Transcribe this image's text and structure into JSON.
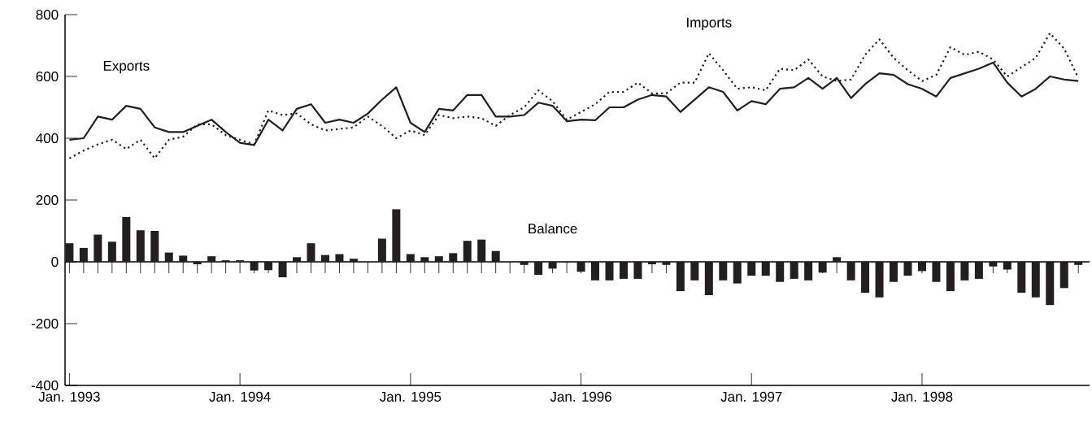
{
  "chart_data": {
    "type": "line",
    "x": [
      "1993-01",
      "1993-02",
      "1993-03",
      "1993-04",
      "1993-05",
      "1993-06",
      "1993-07",
      "1993-08",
      "1993-09",
      "1993-10",
      "1993-11",
      "1993-12",
      "1994-01",
      "1994-02",
      "1994-03",
      "1994-04",
      "1994-05",
      "1994-06",
      "1994-07",
      "1994-08",
      "1994-09",
      "1994-10",
      "1994-11",
      "1994-12",
      "1995-01",
      "1995-02",
      "1995-03",
      "1995-04",
      "1995-05",
      "1995-06",
      "1995-07",
      "1995-08",
      "1995-09",
      "1995-10",
      "1995-11",
      "1995-12",
      "1996-01",
      "1996-02",
      "1996-03",
      "1996-04",
      "1996-05",
      "1996-06",
      "1996-07",
      "1996-08",
      "1996-09",
      "1996-10",
      "1996-11",
      "1996-12",
      "1997-01",
      "1997-02",
      "1997-03",
      "1997-04",
      "1997-05",
      "1997-06",
      "1997-07",
      "1997-08",
      "1997-09",
      "1997-10",
      "1997-11",
      "1997-12",
      "1998-01",
      "1998-02",
      "1998-03",
      "1998-04",
      "1998-05",
      "1998-06",
      "1998-07",
      "1998-08",
      "1998-09",
      "1998-10",
      "1998-11",
      "1998-12"
    ],
    "series": [
      {
        "name": "Exports",
        "line_style": "solid",
        "color": "#231f20",
        "values": [
          395,
          400,
          470,
          460,
          505,
          495,
          435,
          420,
          420,
          440,
          460,
          420,
          385,
          378,
          460,
          425,
          495,
          510,
          450,
          460,
          450,
          480,
          525,
          565,
          450,
          420,
          495,
          490,
          540,
          540,
          470,
          470,
          475,
          515,
          505,
          455,
          460,
          458,
          500,
          500,
          525,
          540,
          535,
          485,
          525,
          565,
          550,
          490,
          520,
          510,
          560,
          565,
          595,
          560,
          595,
          530,
          575,
          610,
          605,
          575,
          560,
          535,
          595,
          610,
          625,
          645,
          580,
          535,
          560,
          600,
          590,
          585
        ]
      },
      {
        "name": "Imports",
        "line_style": "dotted",
        "color": "#231f20",
        "values": [
          335,
          360,
          380,
          395,
          365,
          395,
          335,
          395,
          405,
          445,
          445,
          410,
          395,
          380,
          490,
          475,
          480,
          445,
          425,
          430,
          435,
          470,
          440,
          400,
          425,
          410,
          475,
          465,
          470,
          465,
          440,
          475,
          500,
          555,
          520,
          460,
          485,
          510,
          550,
          550,
          580,
          545,
          545,
          580,
          580,
          675,
          620,
          560,
          565,
          555,
          625,
          620,
          655,
          600,
          585,
          590,
          670,
          720,
          660,
          620,
          585,
          605,
          695,
          670,
          680,
          655,
          600,
          630,
          660,
          740,
          690,
          595
        ]
      },
      {
        "name": "Balance",
        "type": "bar",
        "color": "#231f20",
        "values": [
          60,
          45,
          88,
          65,
          145,
          102,
          100,
          30,
          20,
          -8,
          18,
          5,
          5,
          -28,
          -27,
          -50,
          15,
          60,
          22,
          25,
          10,
          0,
          75,
          170,
          25,
          15,
          18,
          28,
          68,
          72,
          35,
          0,
          -10,
          -42,
          -22,
          -2,
          -32,
          -60,
          -60,
          -55,
          -55,
          -8,
          -10,
          -95,
          -60,
          -108,
          -60,
          -70,
          -45,
          -45,
          -65,
          -55,
          -60,
          -35,
          15,
          -60,
          -100,
          -115,
          -65,
          -45,
          -30,
          -65,
          -95,
          -60,
          -55,
          -15,
          -25,
          -100,
          -115,
          -140,
          -85,
          -10
        ]
      }
    ],
    "xlim": [
      "1992-12-22",
      "1998-12-25"
    ],
    "xticks": [
      {
        "value": "1993-01",
        "label": "Jan. 1993"
      },
      {
        "value": "1994-01",
        "label": "Jan. 1994"
      },
      {
        "value": "1995-01",
        "label": "Jan. 1995"
      },
      {
        "value": "1996-01",
        "label": "Jan. 1996"
      },
      {
        "value": "1997-01",
        "label": "Jan. 1997"
      },
      {
        "value": "1998-01",
        "label": "Jan. 1998"
      }
    ],
    "ylim": [
      -400,
      800
    ],
    "yticks": [
      -400,
      -200,
      0,
      200,
      400,
      600,
      800
    ]
  }
}
